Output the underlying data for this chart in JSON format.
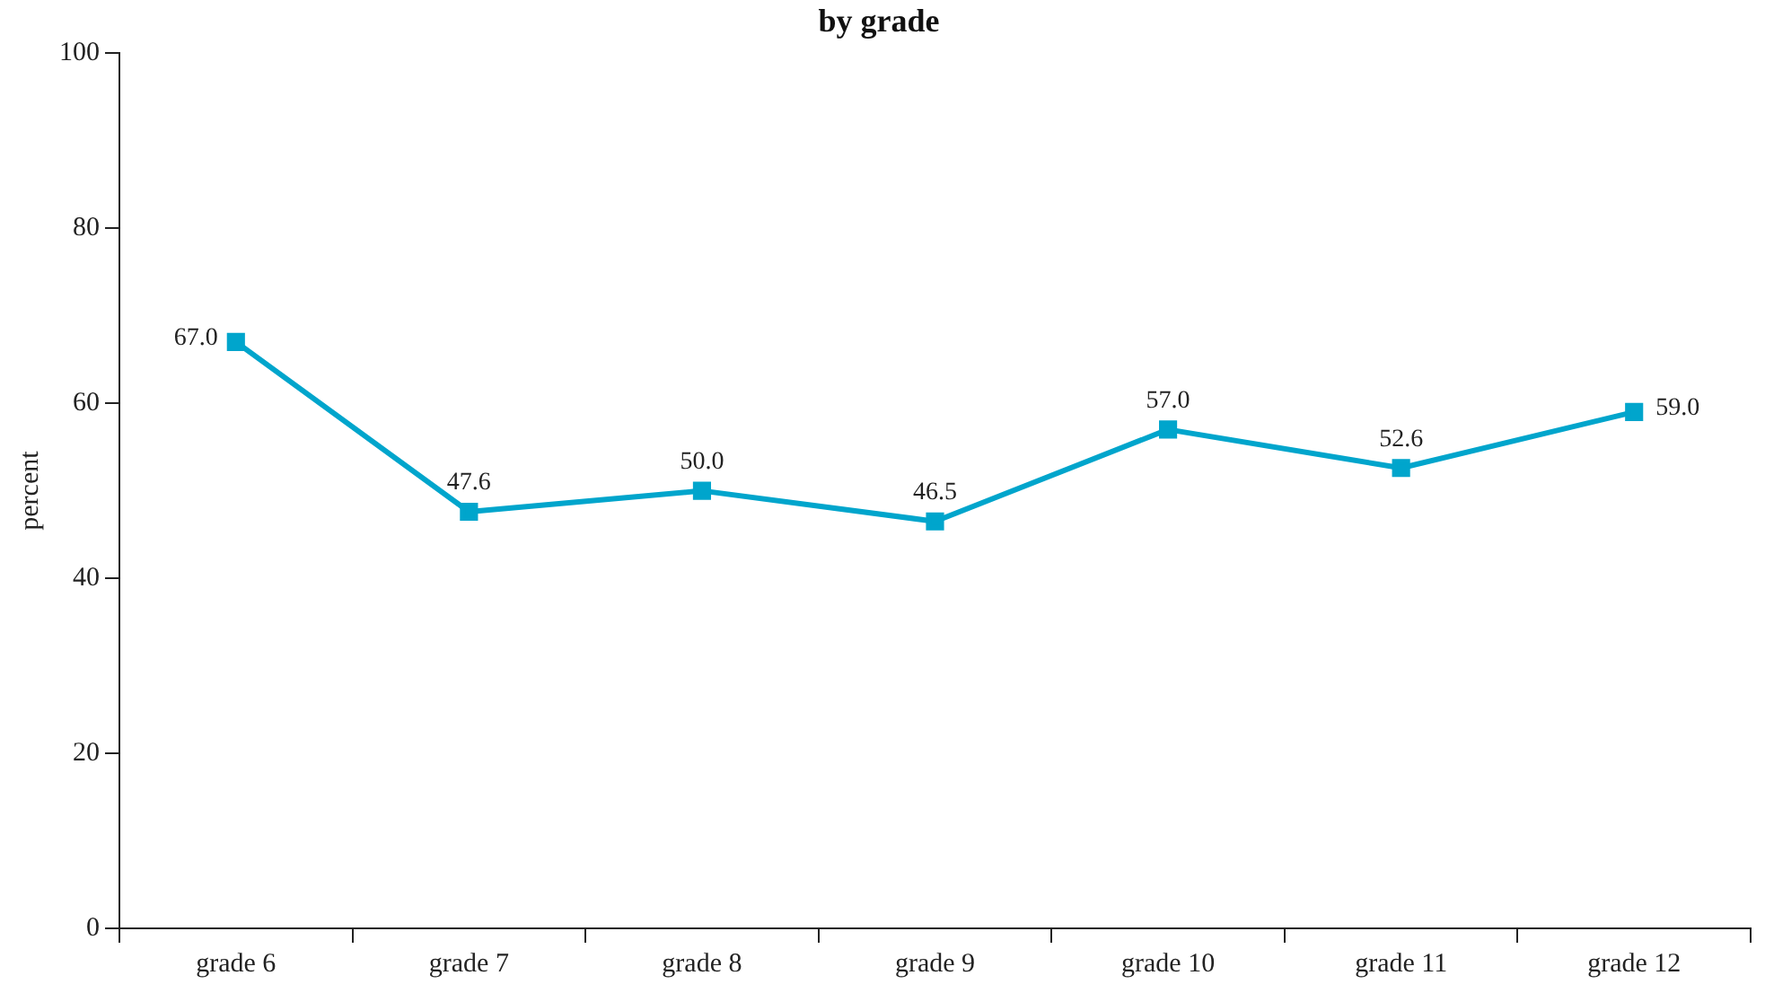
{
  "chart_data": {
    "type": "line",
    "title": "by grade",
    "ylabel": "percent",
    "categories": [
      "grade 6",
      "grade 7",
      "grade 8",
      "grade 9",
      "grade 10",
      "grade 11",
      "grade 12"
    ],
    "series": [
      {
        "color": "#00a5cc",
        "values": [
          67.0,
          47.6,
          50.0,
          46.5,
          57.0,
          52.6,
          59.0
        ],
        "value_labels": [
          "67.0",
          "47.6",
          "50.0",
          "46.5",
          "57.0",
          "52.6",
          "59.0"
        ]
      }
    ],
    "ylim": [
      0,
      100
    ],
    "yticks": [
      0,
      20,
      40,
      60,
      80,
      100
    ],
    "grid": false,
    "legend": false,
    "marker": "square",
    "line_style": "solid"
  }
}
